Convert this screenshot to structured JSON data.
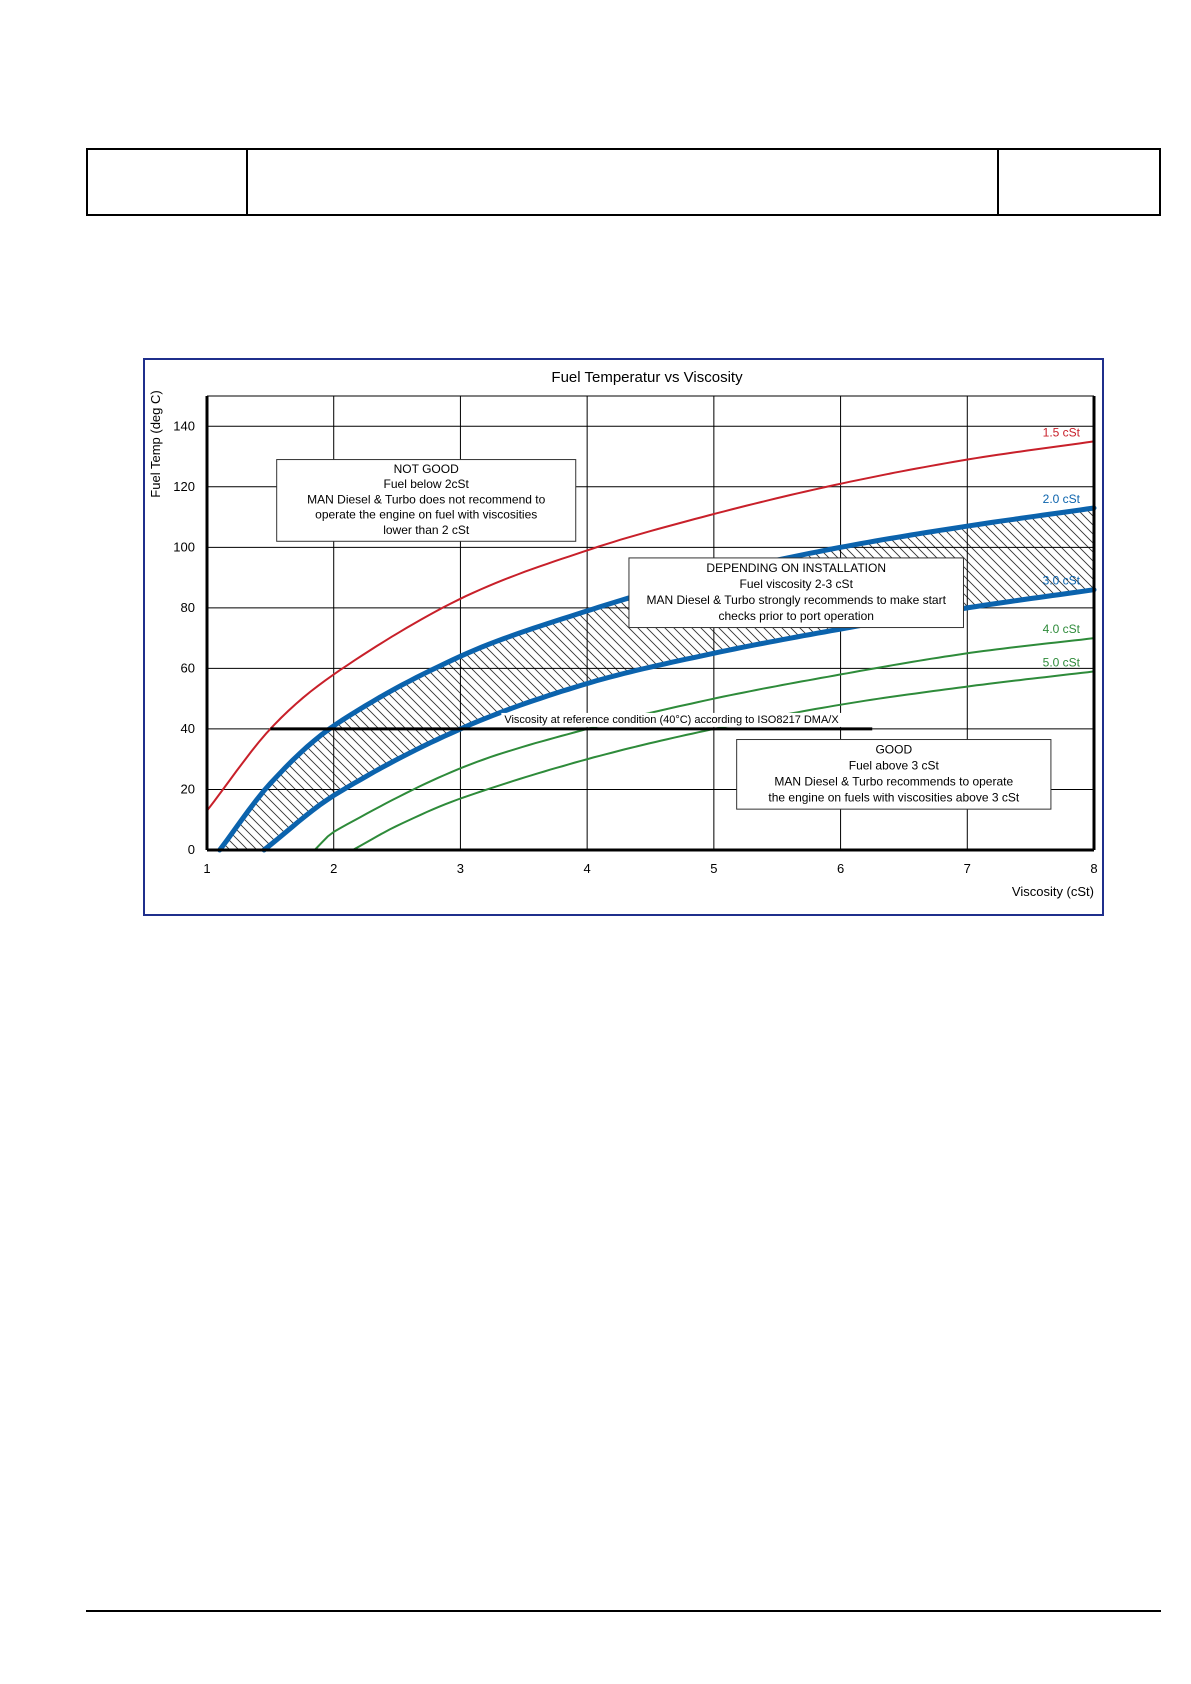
{
  "chart_data": {
    "type": "line",
    "title": "Fuel Temperatur vs Viscosity",
    "xlabel": "Viscosity (cSt)",
    "ylabel": "Fuel Temp (deg C)",
    "xlim": [
      1,
      8
    ],
    "ylim": [
      0,
      150
    ],
    "xticks": [
      1,
      2,
      3,
      4,
      5,
      6,
      7,
      8
    ],
    "yticks": [
      0,
      20,
      40,
      60,
      80,
      100,
      120,
      140
    ],
    "grid": true,
    "series": [
      {
        "name": "1.5 cSt",
        "color": "#c8202a",
        "width": 2,
        "x": [
          1.0,
          1.5,
          2,
          3,
          4,
          5,
          6,
          7,
          8
        ],
        "y": [
          13,
          40,
          58,
          83,
          99,
          111,
          121,
          129,
          135
        ]
      },
      {
        "name": "2.0 cSt",
        "color": "#0b63ad",
        "width": 5,
        "x": [
          1.1,
          1.5,
          2,
          3,
          4,
          5,
          6,
          7,
          8
        ],
        "y": [
          0,
          22,
          41,
          64,
          79,
          91,
          100,
          107,
          113
        ]
      },
      {
        "name": "3.0 cSt",
        "color": "#0b63ad",
        "width": 5,
        "x": [
          1.45,
          2,
          3,
          4,
          5,
          6,
          7,
          8
        ],
        "y": [
          0,
          18,
          40,
          55,
          65,
          73,
          80,
          86
        ]
      },
      {
        "name": "4.0 cSt",
        "color": "#2e8b3a",
        "width": 2,
        "x": [
          1.85,
          2,
          3,
          4,
          5,
          6,
          7,
          8
        ],
        "y": [
          0,
          6,
          27,
          40,
          50,
          58,
          65,
          70
        ]
      },
      {
        "name": "5.0 cSt",
        "color": "#2e8b3a",
        "width": 2,
        "x": [
          2.15,
          2.5,
          3,
          4,
          5,
          6,
          7,
          8
        ],
        "y": [
          0,
          8,
          17,
          30,
          40,
          48,
          54,
          59
        ]
      }
    ],
    "reference_line": {
      "label": "Viscosity at reference condition (40°C) according to ISO8217 DMA/X",
      "y": 40,
      "x": [
        1.5,
        6.25
      ]
    },
    "annotations": [
      {
        "id": "not-good",
        "lines": [
          "NOT GOOD",
          "Fuel below 2cSt",
          "MAN Diesel & Turbo does not recommend to",
          "operate the engine on fuel with viscosities",
          "lower than 2 cSt"
        ]
      },
      {
        "id": "depending",
        "lines": [
          "DEPENDING ON INSTALLATION",
          "Fuel viscosity 2-3 cSt",
          "MAN Diesel & Turbo strongly recommends to make start",
          "checks prior to port operation"
        ]
      },
      {
        "id": "good",
        "lines": [
          "GOOD",
          "Fuel above 3 cSt",
          "MAN Diesel & Turbo recommends to operate",
          "the engine on fuels with viscosities above 3 cSt"
        ]
      }
    ]
  }
}
